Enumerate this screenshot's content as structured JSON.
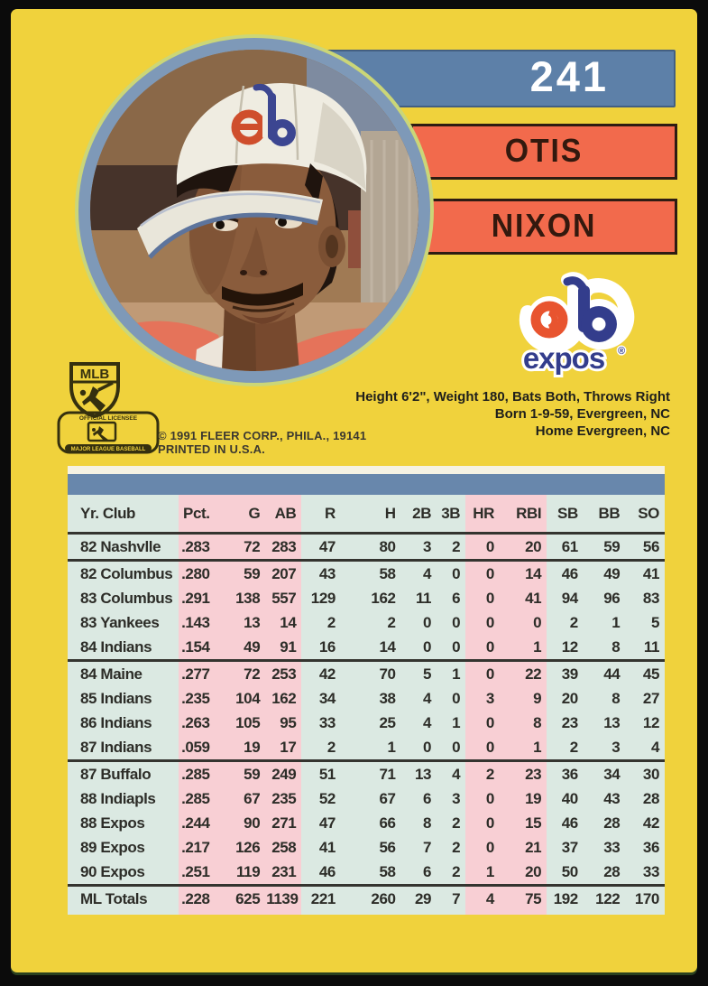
{
  "card": {
    "number": "241",
    "first_name": "OTIS",
    "last_name": "NIXON",
    "team_wordmark": "expos",
    "registered_mark": "®",
    "bio_line1": "Height 6'2\", Weight 180, Bats Both, Throws Right",
    "bio_line2": "Born 1-9-59, Evergreen, NC",
    "bio_line3": "Home Evergreen, NC",
    "copyright_line1": "© 1991 FLEER CORP., PHILA., 19141",
    "copyright_line2": "PRINTED IN U.S.A.",
    "mlb_shield_text": "MLB",
    "licensee_line1": "OFFICIAL LICENSEE",
    "licensee_line2": "MAJOR LEAGUE BASEBALL"
  },
  "stats": {
    "columns": [
      "Yr. Club",
      "Pct.",
      "G",
      "AB",
      "R",
      "H",
      "2B",
      "3B",
      "HR",
      "RBI",
      "SB",
      "BB",
      "SO"
    ],
    "groups": [
      [
        [
          "82 Nashvlle",
          ".283",
          "72",
          "283",
          "47",
          "80",
          "3",
          "2",
          "0",
          "20",
          "61",
          "59",
          "56"
        ]
      ],
      [
        [
          "82 Columbus",
          ".280",
          "59",
          "207",
          "43",
          "58",
          "4",
          "0",
          "0",
          "14",
          "46",
          "49",
          "41"
        ],
        [
          "83 Columbus",
          ".291",
          "138",
          "557",
          "129",
          "162",
          "11",
          "6",
          "0",
          "41",
          "94",
          "96",
          "83"
        ],
        [
          "83 Yankees",
          ".143",
          "13",
          "14",
          "2",
          "2",
          "0",
          "0",
          "0",
          "0",
          "2",
          "1",
          "5"
        ],
        [
          "84 Indians",
          ".154",
          "49",
          "91",
          "16",
          "14",
          "0",
          "0",
          "0",
          "1",
          "12",
          "8",
          "11"
        ]
      ],
      [
        [
          "84 Maine",
          ".277",
          "72",
          "253",
          "42",
          "70",
          "5",
          "1",
          "0",
          "22",
          "39",
          "44",
          "45"
        ],
        [
          "85 Indians",
          ".235",
          "104",
          "162",
          "34",
          "38",
          "4",
          "0",
          "3",
          "9",
          "20",
          "8",
          "27"
        ],
        [
          "86 Indians",
          ".263",
          "105",
          "95",
          "33",
          "25",
          "4",
          "1",
          "0",
          "8",
          "23",
          "13",
          "12"
        ],
        [
          "87 Indians",
          ".059",
          "19",
          "17",
          "2",
          "1",
          "0",
          "0",
          "0",
          "1",
          "2",
          "3",
          "4"
        ]
      ],
      [
        [
          "87 Buffalo",
          ".285",
          "59",
          "249",
          "51",
          "71",
          "13",
          "4",
          "2",
          "23",
          "36",
          "34",
          "30"
        ],
        [
          "88 Indiapls",
          ".285",
          "67",
          "235",
          "52",
          "67",
          "6",
          "3",
          "0",
          "19",
          "40",
          "43",
          "28"
        ],
        [
          "88 Expos",
          ".244",
          "90",
          "271",
          "47",
          "66",
          "8",
          "2",
          "0",
          "15",
          "46",
          "28",
          "42"
        ],
        [
          "89 Expos",
          ".217",
          "126",
          "258",
          "41",
          "56",
          "7",
          "2",
          "0",
          "21",
          "37",
          "33",
          "36"
        ],
        [
          "90 Expos",
          ".251",
          "119",
          "231",
          "46",
          "58",
          "6",
          "2",
          "1",
          "20",
          "50",
          "28",
          "33"
        ]
      ]
    ],
    "totals": [
      "ML Totals",
      ".228",
      "625",
      "1139",
      "221",
      "260",
      "29",
      "7",
      "4",
      "75",
      "192",
      "122",
      "170"
    ]
  },
  "colors": {
    "card_yellow": "#F0D23C",
    "number_bar_blue": "#5D80A8",
    "name_bar_orange": "#F26A4C",
    "table_mint": "#DBE9E2",
    "table_pink": "#F8CFD4",
    "table_band_blue": "#6887AC",
    "photo_ring_blue": "#7E99B8",
    "logo_orange": "#E8542F",
    "logo_blue": "#333D8C"
  }
}
